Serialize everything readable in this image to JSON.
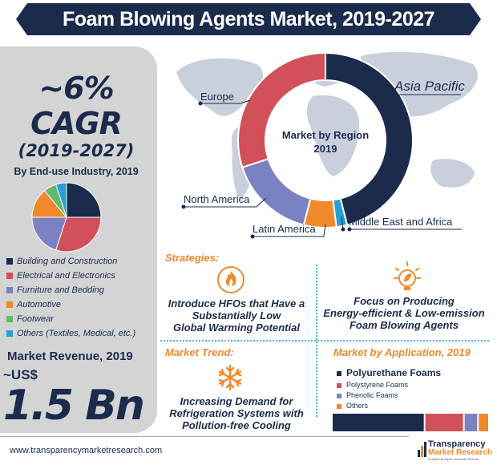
{
  "title": "Foam Blowing Agents Market, 2019-2027",
  "colors": {
    "navy": "#1a2b4c",
    "red": "#d1505a",
    "purple": "#7b82c4",
    "orange": "#f0892b",
    "green": "#5fbb6a",
    "blue": "#2a9fd6",
    "accent_line": "#4ab5d6"
  },
  "cagr": {
    "value": "~6%",
    "label": "CAGR",
    "period": "(2019-2027)"
  },
  "enduse": {
    "title": "By End-use Industry, 2019",
    "legend": [
      {
        "label": "Building and Construction",
        "color": "#1a2b4c"
      },
      {
        "label": "Electrical and Electronics",
        "color": "#d1505a"
      },
      {
        "label": "Furniture and Bedding",
        "color": "#7b82c4"
      },
      {
        "label": "Automotive",
        "color": "#f0892b"
      },
      {
        "label": "Footwear",
        "color": "#5fbb6a"
      },
      {
        "label": "Others (Textiles, Medical, etc.)",
        "color": "#2a9fd6"
      }
    ]
  },
  "revenue": {
    "title": "Market Revenue, 2019",
    "prefix": "~US$",
    "value": "1.5 Bn"
  },
  "region": {
    "center_line1": "Market by Region",
    "center_line2": "2019",
    "labels": {
      "asia_pacific": "Asia Pacific",
      "europe": "Europe",
      "north_america": "North America",
      "latin_america": "Latin America",
      "mea": "Middle East and Africa"
    }
  },
  "strategies": {
    "heading": "Strategies:",
    "item1": [
      "Introduce HFOs that Have a",
      "Substantially Low",
      "Global Warming Potential"
    ],
    "item2": [
      "Focus on Producing",
      "Energy-efficient & Low-emission",
      "Foam Blowing Agents"
    ],
    "icon1": "fire-icon",
    "icon2": "leaf-bulb-icon"
  },
  "trend": {
    "heading": "Market Trend:",
    "text": [
      "Increasing Demand for",
      "Refrigeration Systems with",
      "Pollution-free Cooling"
    ],
    "icon": "snowflake-icon"
  },
  "application": {
    "heading": "Market by Application, 2019",
    "legend": [
      {
        "label": "Polyurethane Foams",
        "color": "#1a2b4c"
      },
      {
        "label": "Polystyrene Foams",
        "color": "#d1505a"
      },
      {
        "label": "Phenolic Foams",
        "color": "#7b82c4"
      },
      {
        "label": "Others",
        "color": "#f0892b"
      }
    ]
  },
  "footer": {
    "url": "www.transparencymarketresearch.com",
    "logo_line1": "Transparency",
    "logo_line2": "Market Research",
    "logo_line3": "In-depth Analysis. Accurate Results"
  },
  "chart_data": [
    {
      "type": "pie",
      "title": "By End-use Industry, 2019",
      "categories": [
        "Building and Construction",
        "Electrical and Electronics",
        "Furniture and Bedding",
        "Automotive",
        "Footwear",
        "Others (Textiles, Medical, etc.)"
      ],
      "values": [
        25,
        30,
        20,
        14,
        6,
        5
      ]
    },
    {
      "type": "pie",
      "title": "Market by Region 2019",
      "categories": [
        "Asia Pacific",
        "Middle East and Africa",
        "Latin America",
        "North America",
        "Europe"
      ],
      "values": [
        46,
        2,
        6,
        16,
        30
      ]
    },
    {
      "type": "bar",
      "title": "Market by Application, 2019",
      "categories": [
        "Polyurethane Foams",
        "Polystyrene Foams",
        "Phenolic Foams",
        "Others"
      ],
      "values": [
        59,
        25,
        9,
        7
      ]
    }
  ]
}
